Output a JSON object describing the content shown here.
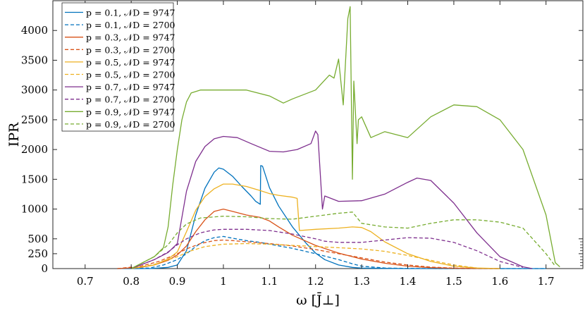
{
  "chart_data": {
    "type": "line",
    "xlabel": "ω [J̄⊥]",
    "ylabel": "IPR",
    "xlim": [
      0.63,
      1.78
    ],
    "ylim": [
      0,
      4500
    ],
    "xticks": [
      0.7,
      0.8,
      0.9,
      1.0,
      1.1,
      1.2,
      1.3,
      1.4,
      1.5,
      1.6,
      1.7
    ],
    "xtick_labels": [
      "0.7",
      "0.8",
      "0.9",
      "1",
      "1.1",
      "1.2",
      "1.3",
      "1.4",
      "1.5",
      "1.6",
      "1.7"
    ],
    "yticks": [
      0,
      250,
      500,
      1000,
      1500,
      2000,
      2500,
      3000,
      3500,
      4000
    ],
    "ytick_labels": [
      "0",
      "250",
      "500",
      "1000",
      "1500",
      "2000",
      "2500",
      "3000",
      "3500",
      "4000"
    ],
    "grid": false,
    "legend_position": "top-left",
    "series": [
      {
        "name": "p = 0.1, 𝒩D = 9747",
        "color": "#0072BD",
        "dash": "solid",
        "x": [
          0.77,
          0.84,
          0.86,
          0.88,
          0.9,
          0.92,
          0.94,
          0.96,
          0.98,
          0.99,
          1.0,
          1.02,
          1.04,
          1.06,
          1.07,
          1.08,
          1.081,
          1.085,
          1.09,
          1.1,
          1.12,
          1.15,
          1.18,
          1.2,
          1.22,
          1.25,
          1.28,
          1.3,
          1.35,
          1.4,
          1.5,
          1.6,
          1.7
        ],
        "y": [
          0,
          0,
          10,
          20,
          60,
          300,
          900,
          1350,
          1620,
          1690,
          1670,
          1550,
          1380,
          1220,
          1130,
          1080,
          1730,
          1720,
          1600,
          1360,
          1050,
          700,
          420,
          260,
          150,
          60,
          20,
          8,
          3,
          0,
          0,
          0,
          0
        ]
      },
      {
        "name": "p = 0.1, 𝒩D = 2700",
        "color": "#0072BD",
        "dash": "dashed",
        "x": [
          0.77,
          0.84,
          0.87,
          0.9,
          0.92,
          0.94,
          0.96,
          0.98,
          1.0,
          1.02,
          1.05,
          1.08,
          1.1,
          1.15,
          1.2,
          1.25,
          1.28,
          1.3,
          1.35,
          1.4,
          1.5,
          1.6,
          1.7
        ],
        "y": [
          0,
          10,
          60,
          150,
          250,
          370,
          470,
          520,
          540,
          510,
          470,
          440,
          410,
          340,
          250,
          150,
          80,
          40,
          10,
          2,
          0,
          0,
          0
        ]
      },
      {
        "name": "p = 0.3, 𝒩D = 9747",
        "color": "#D95319",
        "dash": "solid",
        "x": [
          0.77,
          0.82,
          0.85,
          0.88,
          0.9,
          0.92,
          0.94,
          0.96,
          0.98,
          1.0,
          1.02,
          1.05,
          1.08,
          1.1,
          1.12,
          1.15,
          1.2,
          1.25,
          1.3,
          1.35,
          1.4,
          1.45,
          1.5,
          1.55,
          1.6
        ],
        "y": [
          0,
          20,
          60,
          140,
          230,
          380,
          620,
          820,
          960,
          1000,
          960,
          900,
          860,
          800,
          700,
          560,
          390,
          260,
          160,
          90,
          40,
          15,
          5,
          1,
          0
        ]
      },
      {
        "name": "p = 0.3, 𝒩D = 2700",
        "color": "#D95319",
        "dash": "dashed",
        "x": [
          0.77,
          0.82,
          0.86,
          0.9,
          0.92,
          0.95,
          0.98,
          1.0,
          1.02,
          1.05,
          1.1,
          1.15,
          1.2,
          1.25,
          1.3,
          1.35,
          1.4,
          1.45,
          1.5,
          1.55,
          1.6
        ],
        "y": [
          0,
          40,
          120,
          250,
          330,
          420,
          470,
          480,
          470,
          450,
          420,
          380,
          320,
          250,
          180,
          110,
          60,
          25,
          8,
          2,
          0
        ]
      },
      {
        "name": "p = 0.5, 𝒩D = 9747",
        "color": "#EDB120",
        "dash": "solid",
        "x": [
          0.8,
          0.85,
          0.88,
          0.9,
          0.92,
          0.94,
          0.96,
          0.98,
          1.0,
          1.02,
          1.05,
          1.08,
          1.1,
          1.12,
          1.15,
          1.16,
          1.165,
          1.2,
          1.25,
          1.28,
          1.3,
          1.32,
          1.35,
          1.4,
          1.45,
          1.5,
          1.55,
          1.6
        ],
        "y": [
          0,
          60,
          160,
          280,
          620,
          980,
          1210,
          1340,
          1420,
          1420,
          1380,
          1310,
          1260,
          1230,
          1200,
          1180,
          640,
          660,
          680,
          700,
          690,
          620,
          450,
          250,
          120,
          40,
          10,
          0
        ]
      },
      {
        "name": "p = 0.5, 𝒩D = 2700",
        "color": "#EDB120",
        "dash": "dashed",
        "x": [
          0.8,
          0.85,
          0.9,
          0.93,
          0.96,
          1.0,
          1.05,
          1.1,
          1.15,
          1.2,
          1.25,
          1.3,
          1.35,
          1.4,
          1.45,
          1.5,
          1.55
        ],
        "y": [
          0,
          70,
          200,
          300,
          370,
          410,
          420,
          410,
          390,
          370,
          350,
          330,
          290,
          220,
          140,
          60,
          10
        ]
      },
      {
        "name": "p = 0.7, 𝒩D = 9747",
        "color": "#7E2F8E",
        "dash": "solid",
        "x": [
          0.8,
          0.85,
          0.88,
          0.9,
          0.92,
          0.94,
          0.96,
          0.98,
          1.0,
          1.03,
          1.06,
          1.1,
          1.13,
          1.16,
          1.19,
          1.2,
          1.205,
          1.215,
          1.22,
          1.25,
          1.3,
          1.35,
          1.4,
          1.42,
          1.45,
          1.5,
          1.55,
          1.6,
          1.65,
          1.67
        ],
        "y": [
          0,
          150,
          270,
          420,
          1300,
          1800,
          2050,
          2180,
          2220,
          2200,
          2100,
          1970,
          1960,
          2000,
          2100,
          2310,
          2250,
          1000,
          1220,
          1130,
          1140,
          1250,
          1450,
          1520,
          1480,
          1100,
          600,
          200,
          30,
          0
        ]
      },
      {
        "name": "p = 0.7, 𝒩D = 2700",
        "color": "#7E2F8E",
        "dash": "dashed",
        "x": [
          0.8,
          0.85,
          0.88,
          0.9,
          0.92,
          0.95,
          0.98,
          1.0,
          1.05,
          1.1,
          1.15,
          1.2,
          1.22,
          1.25,
          1.3,
          1.35,
          1.4,
          1.45,
          1.5,
          1.55,
          1.6,
          1.65
        ],
        "y": [
          0,
          150,
          280,
          400,
          500,
          600,
          650,
          660,
          660,
          640,
          580,
          500,
          460,
          440,
          440,
          480,
          520,
          510,
          440,
          300,
          120,
          20
        ]
      },
      {
        "name": "p = 0.9, 𝒩D = 9747",
        "color": "#77AC30",
        "dash": "solid",
        "x": [
          0.8,
          0.85,
          0.87,
          0.88,
          0.89,
          0.9,
          0.91,
          0.92,
          0.93,
          0.95,
          1.0,
          1.05,
          1.1,
          1.13,
          1.15,
          1.2,
          1.23,
          1.24,
          1.25,
          1.26,
          1.27,
          1.275,
          1.28,
          1.283,
          1.29,
          1.293,
          1.3,
          1.32,
          1.35,
          1.4,
          1.45,
          1.5,
          1.55,
          1.6,
          1.65,
          1.7,
          1.72,
          1.73
        ],
        "y": [
          0,
          200,
          350,
          700,
          1400,
          2000,
          2500,
          2800,
          2950,
          3000,
          3000,
          3000,
          2900,
          2780,
          2850,
          3000,
          3250,
          3200,
          3520,
          2750,
          4200,
          4400,
          1500,
          3150,
          2100,
          2500,
          2550,
          2200,
          2300,
          2200,
          2550,
          2750,
          2720,
          2500,
          2000,
          900,
          100,
          30
        ]
      },
      {
        "name": "p = 0.9, 𝒩D = 2700",
        "color": "#77AC30",
        "dash": "dashed",
        "x": [
          0.8,
          0.85,
          0.88,
          0.9,
          0.92,
          0.95,
          1.0,
          1.05,
          1.1,
          1.15,
          1.2,
          1.25,
          1.28,
          1.3,
          1.35,
          1.4,
          1.45,
          1.5,
          1.55,
          1.6,
          1.65,
          1.7,
          1.72
        ],
        "y": [
          0,
          200,
          400,
          600,
          750,
          850,
          880,
          870,
          840,
          830,
          880,
          930,
          950,
          760,
          700,
          680,
          760,
          820,
          820,
          780,
          680,
          250,
          40
        ]
      }
    ]
  }
}
